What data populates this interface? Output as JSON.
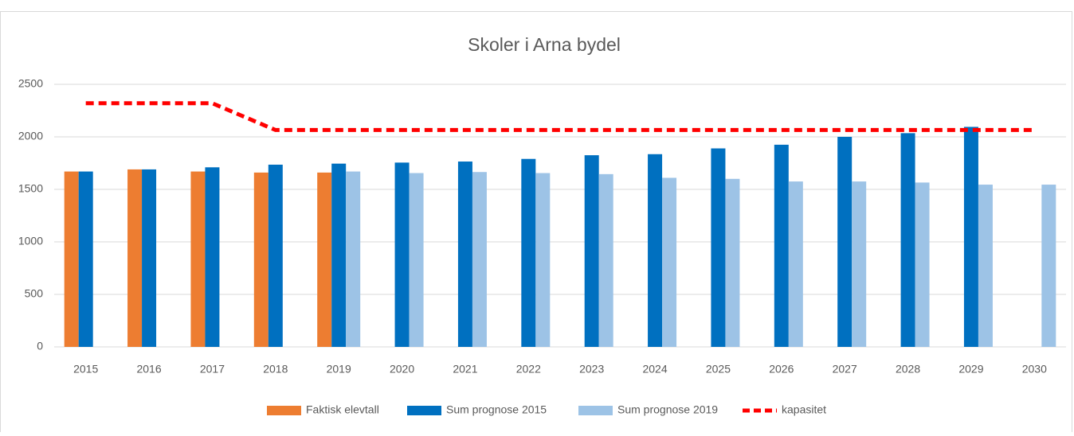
{
  "chart_data": {
    "type": "bar",
    "title": "Skoler i Arna bydel",
    "categories": [
      "2015",
      "2016",
      "2017",
      "2018",
      "2019",
      "2020",
      "2021",
      "2022",
      "2023",
      "2024",
      "2025",
      "2026",
      "2027",
      "2028",
      "2029",
      "2030"
    ],
    "series": [
      {
        "name": "Faktisk elevtall",
        "color": "#ed7d31",
        "type": "bar",
        "values": [
          1670,
          1690,
          1670,
          1660,
          1660,
          null,
          null,
          null,
          null,
          null,
          null,
          null,
          null,
          null,
          null,
          null
        ]
      },
      {
        "name": "Sum prognose 2015",
        "color": "#0070c0",
        "type": "bar",
        "values": [
          1670,
          1690,
          1710,
          1735,
          1745,
          1755,
          1765,
          1790,
          1825,
          1835,
          1890,
          1925,
          2000,
          2035,
          2095,
          null
        ]
      },
      {
        "name": "Sum prognose 2019",
        "color": "#9dc3e6",
        "type": "bar",
        "values": [
          null,
          null,
          null,
          null,
          1670,
          1655,
          1665,
          1655,
          1645,
          1610,
          1600,
          1575,
          1575,
          1565,
          1545,
          1545
        ]
      },
      {
        "name": "kapasitet",
        "color": "#ff0000",
        "type": "line",
        "dashed": true,
        "values": [
          2320,
          2320,
          2320,
          2065,
          2065,
          2065,
          2065,
          2065,
          2065,
          2065,
          2065,
          2065,
          2065,
          2065,
          2065,
          2065
        ]
      }
    ],
    "ylim": [
      0,
      2500
    ],
    "yticks": [
      0,
      500,
      1000,
      1500,
      2000,
      2500
    ],
    "grid": true,
    "legend": "bottom"
  }
}
